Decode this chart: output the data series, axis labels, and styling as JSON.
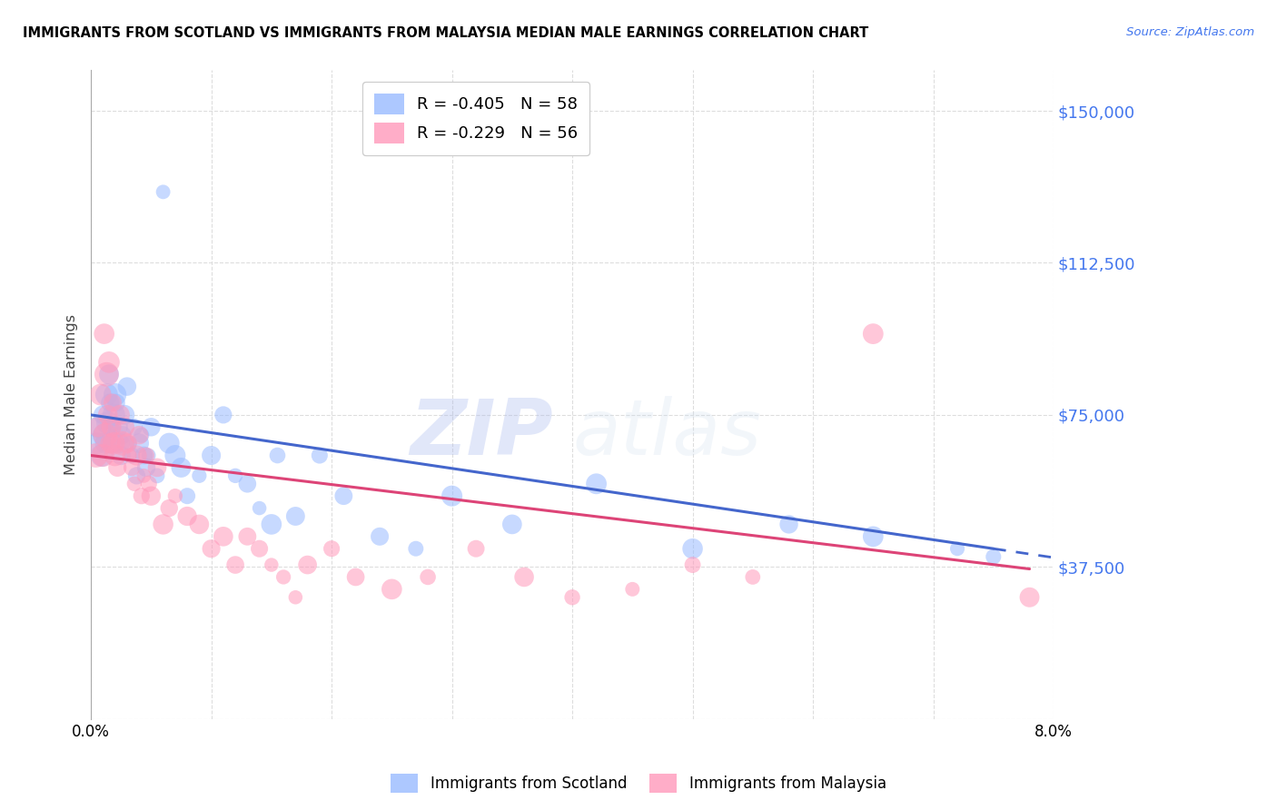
{
  "title": "IMMIGRANTS FROM SCOTLAND VS IMMIGRANTS FROM MALAYSIA MEDIAN MALE EARNINGS CORRELATION CHART",
  "source": "Source: ZipAtlas.com",
  "ylabel": "Median Male Earnings",
  "yticks": [
    0,
    37500,
    75000,
    112500,
    150000
  ],
  "ytick_labels": [
    "",
    "$37,500",
    "$75,000",
    "$112,500",
    "$150,000"
  ],
  "xlim": [
    0.0,
    8.0
  ],
  "ylim": [
    0,
    160000
  ],
  "scotland_color": "#99bbff",
  "malaysia_color": "#ff99bb",
  "line_scotland_color": "#4466cc",
  "line_malaysia_color": "#dd4477",
  "scotland_R": -0.405,
  "scotland_N": 58,
  "malaysia_R": -0.229,
  "malaysia_N": 56,
  "watermark_zip": "ZIP",
  "watermark_atlas": "atlas",
  "scotland_x": [
    0.05,
    0.07,
    0.09,
    0.1,
    0.11,
    0.12,
    0.13,
    0.14,
    0.15,
    0.16,
    0.17,
    0.18,
    0.19,
    0.2,
    0.21,
    0.22,
    0.24,
    0.25,
    0.26,
    0.28,
    0.3,
    0.32,
    0.34,
    0.36,
    0.38,
    0.4,
    0.42,
    0.44,
    0.46,
    0.48,
    0.5,
    0.55,
    0.6,
    0.65,
    0.7,
    0.75,
    0.8,
    0.9,
    1.0,
    1.1,
    1.2,
    1.3,
    1.4,
    1.5,
    1.55,
    1.7,
    1.9,
    2.1,
    2.4,
    2.7,
    3.0,
    3.5,
    4.2,
    5.0,
    5.8,
    6.5,
    7.2,
    7.5
  ],
  "scotland_y": [
    68000,
    72000,
    65000,
    75000,
    70000,
    68000,
    80000,
    73000,
    85000,
    78000,
    72000,
    68000,
    75000,
    80000,
    78000,
    72000,
    68000,
    65000,
    70000,
    75000,
    82000,
    68000,
    65000,
    72000,
    60000,
    68000,
    70000,
    65000,
    62000,
    65000,
    72000,
    60000,
    130000,
    68000,
    65000,
    62000,
    55000,
    60000,
    65000,
    75000,
    60000,
    58000,
    52000,
    48000,
    65000,
    50000,
    65000,
    55000,
    45000,
    42000,
    55000,
    48000,
    58000,
    42000,
    48000,
    45000,
    42000,
    40000
  ],
  "malaysia_x": [
    0.04,
    0.06,
    0.08,
    0.1,
    0.11,
    0.12,
    0.13,
    0.14,
    0.15,
    0.16,
    0.17,
    0.18,
    0.19,
    0.2,
    0.22,
    0.24,
    0.26,
    0.28,
    0.3,
    0.32,
    0.34,
    0.36,
    0.38,
    0.4,
    0.42,
    0.44,
    0.46,
    0.48,
    0.5,
    0.55,
    0.6,
    0.65,
    0.7,
    0.8,
    0.9,
    1.0,
    1.1,
    1.2,
    1.3,
    1.4,
    1.5,
    1.6,
    1.7,
    1.8,
    2.0,
    2.2,
    2.5,
    2.8,
    3.2,
    3.6,
    4.0,
    4.5,
    5.0,
    5.5,
    6.5,
    7.8
  ],
  "malaysia_y": [
    65000,
    72000,
    80000,
    65000,
    95000,
    70000,
    85000,
    75000,
    88000,
    68000,
    72000,
    78000,
    68000,
    65000,
    62000,
    75000,
    68000,
    72000,
    68000,
    65000,
    62000,
    58000,
    65000,
    70000,
    55000,
    60000,
    65000,
    58000,
    55000,
    62000,
    48000,
    52000,
    55000,
    50000,
    48000,
    42000,
    45000,
    38000,
    45000,
    42000,
    38000,
    35000,
    30000,
    38000,
    42000,
    35000,
    32000,
    35000,
    42000,
    35000,
    30000,
    32000,
    38000,
    35000,
    95000,
    30000
  ]
}
